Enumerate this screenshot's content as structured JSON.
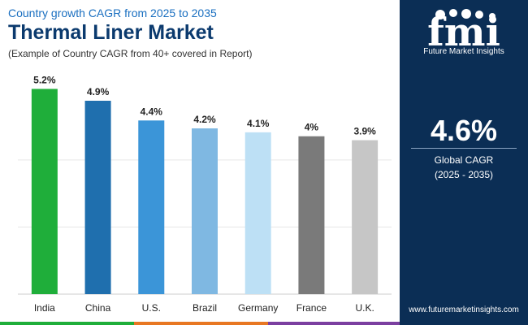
{
  "header": {
    "subtitle": "Country growth CAGR from 2025 to 2035",
    "title": "Thermal Liner Market",
    "note": "(Example of Country CAGR from 40+ covered in Report)"
  },
  "sidebar": {
    "logo_brand": "Future Market Insights",
    "cagr_value": "4.6%",
    "cagr_label": "Global CAGR",
    "cagr_period": "(2025 - 2035)",
    "url": "www.futuremarketinsights.com"
  },
  "colors": {
    "sidebar_bg": "#0b2e55",
    "title": "#0b3a6e",
    "subtitle": "#1a6fc0"
  },
  "chart_data": {
    "type": "bar",
    "title": "",
    "xlabel": "",
    "ylabel": "",
    "ylim": [
      0,
      5.6
    ],
    "grid": true,
    "categories": [
      "India",
      "China",
      "U.S.",
      "Brazil",
      "Germany",
      "France",
      "U.K."
    ],
    "values": [
      5.2,
      4.9,
      4.4,
      4.2,
      4.1,
      4.0,
      3.9
    ],
    "value_labels": [
      "5.2%",
      "4.9%",
      "4.4%",
      "4.2%",
      "4.1%",
      "4%",
      "3.9%"
    ],
    "bar_colors": [
      "#1fae3a",
      "#1f6fae",
      "#3b95d8",
      "#7fb8e2",
      "#bde0f5",
      "#7a7a7a",
      "#c6c6c6"
    ]
  }
}
